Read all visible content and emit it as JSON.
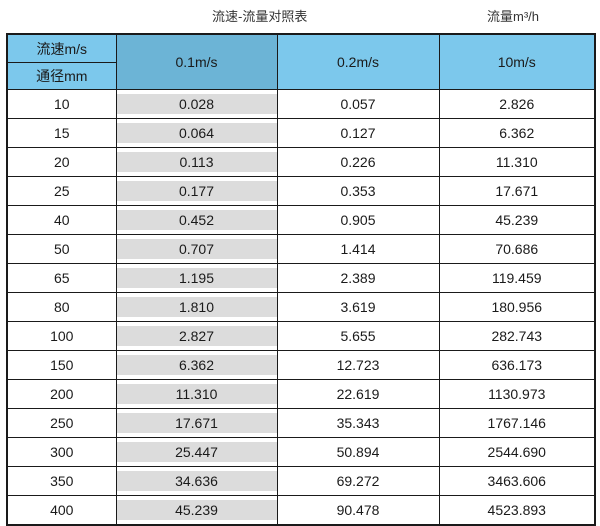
{
  "header": {
    "title": "流速-流量对照表",
    "unit_label": "流量m³/h"
  },
  "table": {
    "corner_top": "流速m/s",
    "corner_bottom": "通径mm",
    "columns": [
      "0.1m/s",
      "0.2m/s",
      "10m/s"
    ],
    "rows": [
      {
        "d": "10",
        "v": [
          "0.028",
          "0.057",
          "2.826"
        ]
      },
      {
        "d": "15",
        "v": [
          "0.064",
          "0.127",
          "6.362"
        ]
      },
      {
        "d": "20",
        "v": [
          "0.113",
          "0.226",
          "11.310"
        ]
      },
      {
        "d": "25",
        "v": [
          "0.177",
          "0.353",
          "17.671"
        ]
      },
      {
        "d": "40",
        "v": [
          "0.452",
          "0.905",
          "45.239"
        ]
      },
      {
        "d": "50",
        "v": [
          "0.707",
          "1.414",
          "70.686"
        ]
      },
      {
        "d": "65",
        "v": [
          "1.195",
          "2.389",
          "119.459"
        ]
      },
      {
        "d": "80",
        "v": [
          "1.810",
          "3.619",
          "180.956"
        ]
      },
      {
        "d": "100",
        "v": [
          "2.827",
          "5.655",
          "282.743"
        ]
      },
      {
        "d": "150",
        "v": [
          "6.362",
          "12.723",
          "636.173"
        ]
      },
      {
        "d": "200",
        "v": [
          "11.310",
          "22.619",
          "1130.973"
        ]
      },
      {
        "d": "250",
        "v": [
          "17.671",
          "35.343",
          "1767.146"
        ]
      },
      {
        "d": "300",
        "v": [
          "25.447",
          "50.894",
          "2544.690"
        ]
      },
      {
        "d": "350",
        "v": [
          "34.636",
          "69.272",
          "3463.606"
        ]
      },
      {
        "d": "400",
        "v": [
          "45.239",
          "90.478",
          "4523.893"
        ]
      }
    ]
  },
  "colors": {
    "header_blue": "#7cc8ec",
    "header_blue_dark": "#6cb4d6",
    "highlight_gray": "#dcdcdc",
    "border_black": "#1a1a1a",
    "background": "#ffffff"
  },
  "chart_data": {
    "type": "table",
    "title": "流速-流量对照表",
    "unit_header": "流量m³/h",
    "row_header_label": "通径mm",
    "col_header_label": "流速m/s",
    "columns": [
      "0.1m/s",
      "0.2m/s",
      "10m/s"
    ],
    "diameters_mm": [
      10,
      15,
      20,
      25,
      40,
      50,
      65,
      80,
      100,
      150,
      200,
      250,
      300,
      350,
      400
    ],
    "flow_values_m3_per_h": [
      [
        0.028,
        0.057,
        2.826
      ],
      [
        0.064,
        0.127,
        6.362
      ],
      [
        0.113,
        0.226,
        11.31
      ],
      [
        0.177,
        0.353,
        17.671
      ],
      [
        0.452,
        0.905,
        45.239
      ],
      [
        0.707,
        1.414,
        70.686
      ],
      [
        1.195,
        2.389,
        119.459
      ],
      [
        1.81,
        3.619,
        180.956
      ],
      [
        2.827,
        5.655,
        282.743
      ],
      [
        6.362,
        12.723,
        636.173
      ],
      [
        11.31,
        22.619,
        1130.973
      ],
      [
        17.671,
        35.343,
        1767.146
      ],
      [
        25.447,
        50.894,
        2544.69
      ],
      [
        34.636,
        69.272,
        3463.606
      ],
      [
        45.239,
        90.478,
        4523.893
      ]
    ]
  }
}
